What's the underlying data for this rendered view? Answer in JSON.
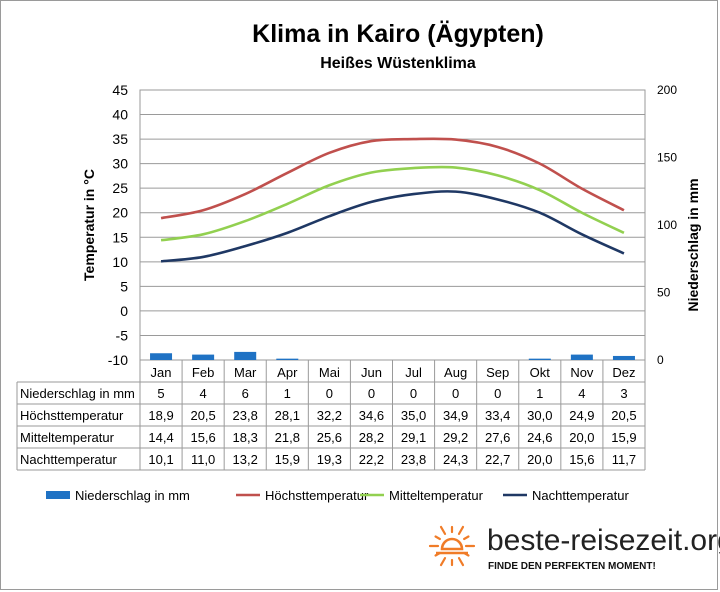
{
  "chart_data": {
    "type": "line",
    "title": "Klima in Kairo (Ägypten)",
    "subtitle": "Heißes Wüstenklima",
    "ylabel_left": "Temperatur in °C",
    "ylabel_right": "Niederschlag in mm",
    "ylim_left": [
      -10,
      45
    ],
    "yticks_left": [
      "45",
      "40",
      "35",
      "30",
      "25",
      "20",
      "15",
      "10",
      "5",
      "0",
      "-5",
      "-10"
    ],
    "ylim_right": [
      0,
      200
    ],
    "yticks_right": [
      "200",
      "150",
      "100",
      "50",
      "0"
    ],
    "grid": true,
    "legend_position": "bottom",
    "categories": [
      "Jan",
      "Feb",
      "Mar",
      "Apr",
      "Mai",
      "Jun",
      "Jul",
      "Aug",
      "Sep",
      "Okt",
      "Nov",
      "Dez"
    ],
    "series": [
      {
        "name": "Niederschlag in mm",
        "type": "bar",
        "axis": "right",
        "color": "#1f72c4",
        "values": [
          5,
          4,
          6,
          1,
          0,
          0,
          0,
          0,
          0,
          1,
          4,
          3
        ],
        "labels": [
          "5",
          "4",
          "6",
          "1",
          "0",
          "0",
          "0",
          "0",
          "0",
          "1",
          "4",
          "3"
        ]
      },
      {
        "name": "Höchsttemperatur",
        "type": "line",
        "axis": "left",
        "color": "#c0504d",
        "values": [
          18.9,
          20.5,
          23.8,
          28.1,
          32.2,
          34.6,
          35.0,
          34.9,
          33.4,
          30.0,
          24.9,
          20.5
        ],
        "labels": [
          "18,9",
          "20,5",
          "23,8",
          "28,1",
          "32,2",
          "34,6",
          "35,0",
          "34,9",
          "33,4",
          "30,0",
          "24,9",
          "20,5"
        ]
      },
      {
        "name": "Mitteltemperatur",
        "type": "line",
        "axis": "left",
        "color": "#92d050",
        "values": [
          14.4,
          15.6,
          18.3,
          21.8,
          25.6,
          28.2,
          29.1,
          29.2,
          27.6,
          24.6,
          20.0,
          15.9
        ],
        "labels": [
          "14,4",
          "15,6",
          "18,3",
          "21,8",
          "25,6",
          "28,2",
          "29,1",
          "29,2",
          "27,6",
          "24,6",
          "20,0",
          "15,9"
        ]
      },
      {
        "name": "Nachttemperatur",
        "type": "line",
        "axis": "left",
        "color": "#1f3864",
        "values": [
          10.1,
          11.0,
          13.2,
          15.9,
          19.3,
          22.2,
          23.8,
          24.3,
          22.7,
          20.0,
          15.6,
          11.7
        ],
        "labels": [
          "10,1",
          "11,0",
          "13,2",
          "15,9",
          "19,3",
          "22,2",
          "23,8",
          "24,3",
          "22,7",
          "20,0",
          "15,6",
          "11,7"
        ]
      }
    ]
  },
  "branding": {
    "site": "beste-reisezeit.org",
    "tagline": "FINDE DEN PERFEKTEN MOMENT!",
    "logo_icon": "sun-icon",
    "logo_color": "#f07c28"
  }
}
